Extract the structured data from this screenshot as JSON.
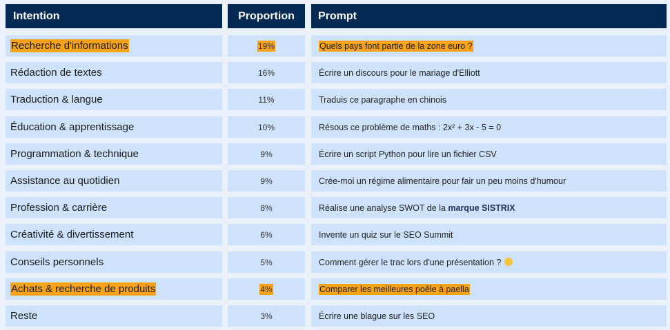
{
  "headers": {
    "intention": "Intention",
    "proportion": "Proportion",
    "prompt": "Prompt"
  },
  "rows": [
    {
      "intention": "Recherche d'informations",
      "proportion": "19%",
      "prompt": "Quels pays font partie de la zone euro ?",
      "highlight": true
    },
    {
      "intention": "Rédaction de textes",
      "proportion": "16%",
      "prompt": "Écrire un discours pour le mariage d'Elliott",
      "highlight": false
    },
    {
      "intention": "Traduction & langue",
      "proportion": "11%",
      "prompt": "Traduis ce paragraphe en chinois",
      "highlight": false
    },
    {
      "intention": "Éducation & apprentissage",
      "proportion": "10%",
      "prompt": "Résous ce problème de maths : 2x² + 3x - 5 = 0",
      "highlight": false
    },
    {
      "intention": "Programmation & technique",
      "proportion": "9%",
      "prompt": "Écrire un script Python pour lire un fichier CSV",
      "highlight": false
    },
    {
      "intention": "Assistance au quotidien",
      "proportion": "9%",
      "prompt": "Crée-moi un régime alimentaire pour fair un peu moins d'humour",
      "highlight": false
    },
    {
      "intention": "Profession & carrière",
      "proportion": "8%",
      "prompt": "Réalise une analyse SWOT de la ",
      "prompt_bold": "marque SISTRIX",
      "highlight": false
    },
    {
      "intention": "Créativité & divertissement",
      "proportion": "6%",
      "prompt": "Invente un quiz sur le SEO Summit",
      "highlight": false
    },
    {
      "intention": "Conseils personnels",
      "proportion": "5%",
      "prompt": "Comment gérer le trac lors d'une présentation ?",
      "emoji": "smiley-emoji",
      "highlight": false
    },
    {
      "intention": "Achats & recherche de produits",
      "proportion": "4%",
      "prompt": "Comparer les meilleures poêle à paella",
      "highlight": true
    },
    {
      "intention": "Reste",
      "proportion": "3%",
      "prompt": "Écrire une blague sur les SEO",
      "highlight": false
    }
  ],
  "colors": {
    "header_bg": "#032a55",
    "cell_bg": "#cfe2fb",
    "highlight": "#f7a21b"
  }
}
